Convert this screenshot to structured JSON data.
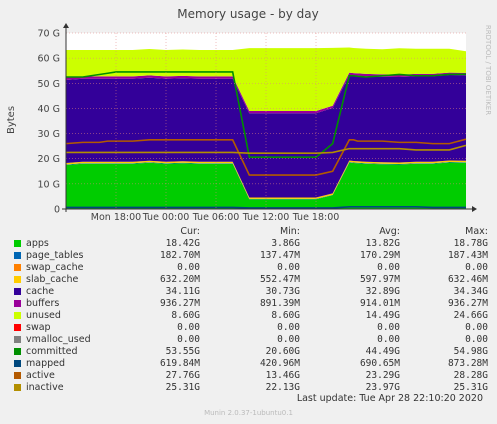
{
  "chart_data": {
    "type": "area",
    "title": "Memory usage - by day",
    "ylabel": "Bytes",
    "side_label": "RRDTOOL / TOBI OETIKER",
    "ylim": [
      0,
      70
    ],
    "y_unit": "G",
    "yticks": [
      "0",
      "10 G",
      "20 G",
      "30 G",
      "40 G",
      "50 G",
      "60 G",
      "70 G"
    ],
    "xticks": [
      "Mon 18:00",
      "Tue 00:00",
      "Tue 06:00",
      "Tue 12:00",
      "Tue 18:00"
    ],
    "x_hours": [
      0,
      2,
      4,
      5,
      6,
      7,
      7.6,
      8,
      10,
      12,
      14,
      16,
      18,
      20,
      22,
      24,
      26,
      28,
      30,
      32,
      34,
      34.5,
      35,
      36,
      38,
      40,
      42,
      44,
      46,
      48
    ],
    "series": [
      {
        "name": "apps",
        "color": "#00cc00",
        "values": [
          17.5,
          18,
          18,
          18,
          18,
          18,
          18,
          18,
          18.4,
          18,
          18.2,
          18,
          18,
          18,
          3.9,
          3.9,
          3.9,
          3.9,
          3.9,
          5.5,
          18.5,
          18.3,
          18.2,
          18,
          17.8,
          17.7,
          18,
          18,
          18.5,
          18.4
        ]
      },
      {
        "name": "page_tables",
        "color": "#0066b3",
        "values": [
          0.18,
          0.18,
          0.18,
          0.18,
          0.18,
          0.18,
          0.18,
          0.18,
          0.18,
          0.18,
          0.18,
          0.18,
          0.18,
          0.18,
          0.14,
          0.14,
          0.14,
          0.14,
          0.14,
          0.14,
          0.18,
          0.18,
          0.18,
          0.18,
          0.18,
          0.18,
          0.18,
          0.18,
          0.18,
          0.18
        ]
      },
      {
        "name": "swap_cache",
        "color": "#ff8000",
        "values": [
          0,
          0,
          0,
          0,
          0,
          0,
          0,
          0,
          0,
          0,
          0,
          0,
          0,
          0,
          0,
          0,
          0,
          0,
          0,
          0,
          0,
          0,
          0,
          0,
          0,
          0,
          0,
          0,
          0,
          0
        ]
      },
      {
        "name": "slab_cache",
        "color": "#ffcc00",
        "values": [
          0.63,
          0.63,
          0.63,
          0.63,
          0.63,
          0.63,
          0.63,
          0.63,
          0.63,
          0.63,
          0.63,
          0.63,
          0.63,
          0.63,
          0.55,
          0.55,
          0.55,
          0.55,
          0.55,
          0.55,
          0.63,
          0.63,
          0.63,
          0.63,
          0.63,
          0.63,
          0.63,
          0.63,
          0.63,
          0.63
        ]
      },
      {
        "name": "cache",
        "color": "#330099",
        "values": [
          33,
          33,
          33,
          33,
          33,
          33,
          33,
          33,
          33,
          33,
          33,
          33,
          33,
          33,
          33.5,
          33.5,
          33.5,
          33.5,
          33.5,
          34,
          34,
          34,
          34,
          34,
          34,
          34,
          34,
          34,
          34,
          34
        ]
      },
      {
        "name": "buffers",
        "color": "#990099",
        "values": [
          0.93,
          0.93,
          0.93,
          0.93,
          0.93,
          0.93,
          0.93,
          0.93,
          0.93,
          0.93,
          0.93,
          0.93,
          0.93,
          0.93,
          0.89,
          0.89,
          0.89,
          0.89,
          0.89,
          0.89,
          0.93,
          0.93,
          0.93,
          0.93,
          0.93,
          0.93,
          0.93,
          0.93,
          0.93,
          0.93
        ]
      },
      {
        "name": "unused",
        "color": "#ccff00",
        "values": [
          11,
          10.5,
          10.5,
          10.5,
          10.5,
          10.5,
          10.5,
          10.5,
          10.5,
          10.5,
          10.5,
          10.5,
          10.5,
          10.5,
          25,
          25,
          25,
          25,
          25,
          23,
          10,
          10,
          10,
          10,
          10,
          10.5,
          10,
          10,
          9.5,
          8.6
        ]
      },
      {
        "name": "swap",
        "color": "#ff0000",
        "values": [
          0,
          0,
          0,
          0,
          0,
          0,
          0,
          0,
          0,
          0,
          0,
          0,
          0,
          0,
          0,
          0,
          0,
          0,
          0,
          0,
          0,
          0,
          0,
          0,
          0,
          0,
          0,
          0,
          0,
          0
        ]
      },
      {
        "name": "vmalloc_used",
        "color": "#808080",
        "values": [
          0,
          0,
          0,
          0,
          0,
          0,
          0,
          0,
          0,
          0,
          0,
          0,
          0,
          0,
          0,
          0,
          0,
          0,
          0,
          0,
          0,
          0,
          0,
          0,
          0,
          0,
          0,
          0,
          0,
          0
        ]
      },
      {
        "name": "committed",
        "color": "#008f00",
        "values": [
          52.5,
          52.5,
          53.5,
          54,
          54.5,
          54.5,
          54.5,
          54.5,
          54.5,
          54.5,
          54.5,
          54.5,
          54.5,
          54.5,
          20.6,
          20.6,
          20.6,
          20.6,
          20.6,
          26,
          53,
          53,
          52.8,
          52.5,
          53,
          53.5,
          53,
          53,
          53.5,
          53.55
        ]
      },
      {
        "name": "mapped",
        "color": "#00487d",
        "values": [
          0.62,
          0.62,
          0.62,
          0.62,
          0.62,
          0.62,
          0.62,
          0.62,
          0.62,
          0.62,
          0.62,
          0.62,
          0.62,
          0.62,
          0.42,
          0.42,
          0.42,
          0.42,
          0.42,
          0.42,
          0.87,
          0.87,
          0.87,
          0.87,
          0.87,
          0.87,
          0.87,
          0.62,
          0.62,
          0.62
        ]
      },
      {
        "name": "active",
        "color": "#b35a00",
        "values": [
          26,
          26.5,
          26.5,
          27,
          27,
          27,
          27,
          27,
          27.5,
          27.5,
          27.5,
          27.5,
          27.5,
          27.5,
          13.5,
          13.5,
          13.5,
          13.5,
          13.5,
          15,
          27.5,
          27.5,
          27,
          27,
          27,
          26.5,
          26.5,
          26,
          26,
          27.76
        ]
      },
      {
        "name": "inactive",
        "color": "#b38f00",
        "values": [
          22.5,
          22.5,
          22.5,
          22.5,
          22.5,
          22.5,
          22.5,
          22.5,
          22.5,
          22.5,
          22.5,
          22.5,
          22.5,
          22.5,
          22.2,
          22.2,
          22.2,
          22.2,
          22.2,
          22.5,
          24,
          24,
          24,
          24,
          24,
          24,
          23.5,
          23.5,
          23.5,
          25.31
        ]
      }
    ]
  },
  "legend": {
    "headers": [
      "Cur:",
      "Min:",
      "Avg:",
      "Max:"
    ],
    "rows": [
      {
        "name": "apps",
        "color": "#00cc00",
        "cur": "18.42G",
        "min": "3.86G",
        "avg": "13.82G",
        "max": "18.78G"
      },
      {
        "name": "page_tables",
        "color": "#0066b3",
        "cur": "182.70M",
        "min": "137.47M",
        "avg": "170.29M",
        "max": "187.43M"
      },
      {
        "name": "swap_cache",
        "color": "#ff8000",
        "cur": "0.00",
        "min": "0.00",
        "avg": "0.00",
        "max": "0.00"
      },
      {
        "name": "slab_cache",
        "color": "#ffcc00",
        "cur": "632.20M",
        "min": "552.47M",
        "avg": "597.97M",
        "max": "632.46M"
      },
      {
        "name": "cache",
        "color": "#330099",
        "cur": "34.11G",
        "min": "30.73G",
        "avg": "32.89G",
        "max": "34.34G"
      },
      {
        "name": "buffers",
        "color": "#990099",
        "cur": "936.27M",
        "min": "891.39M",
        "avg": "914.01M",
        "max": "936.27M"
      },
      {
        "name": "unused",
        "color": "#ccff00",
        "cur": "8.60G",
        "min": "8.60G",
        "avg": "14.49G",
        "max": "24.66G"
      },
      {
        "name": "swap",
        "color": "#ff0000",
        "cur": "0.00",
        "min": "0.00",
        "avg": "0.00",
        "max": "0.00"
      },
      {
        "name": "vmalloc_used",
        "color": "#808080",
        "cur": "0.00",
        "min": "0.00",
        "avg": "0.00",
        "max": "0.00"
      },
      {
        "name": "committed",
        "color": "#008f00",
        "cur": "53.55G",
        "min": "20.60G",
        "avg": "44.49G",
        "max": "54.98G"
      },
      {
        "name": "mapped",
        "color": "#00487d",
        "cur": "619.84M",
        "min": "420.96M",
        "avg": "690.65M",
        "max": "873.28M"
      },
      {
        "name": "active",
        "color": "#b35a00",
        "cur": "27.76G",
        "min": "13.46G",
        "avg": "23.29G",
        "max": "28.28G"
      },
      {
        "name": "inactive",
        "color": "#b38f00",
        "cur": "25.31G",
        "min": "22.13G",
        "avg": "23.97G",
        "max": "25.31G"
      }
    ]
  },
  "last_update": "Last update:  Tue Apr 28 22:10:20 2020",
  "footer": "Munin 2.0.37-1ubuntu0.1"
}
